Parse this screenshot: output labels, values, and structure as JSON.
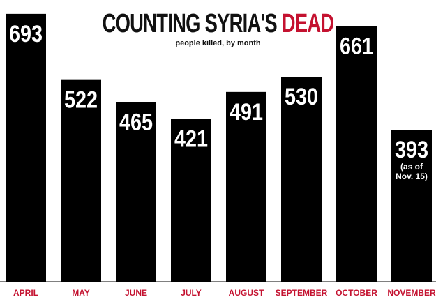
{
  "chart_data": {
    "type": "bar",
    "title_main": "COUNTING SYRIA'S",
    "title_accent": "DEAD",
    "subtitle": "people killed, by month",
    "categories": [
      "APRIL",
      "MAY",
      "JUNE",
      "JULY",
      "AUGUST",
      "SEPTEMBER",
      "OCTOBER",
      "NOVEMBER"
    ],
    "values": [
      693,
      522,
      465,
      421,
      491,
      530,
      661,
      393
    ],
    "value_labels": [
      "693",
      "522",
      "465",
      "421",
      "491",
      "530",
      "661",
      "393"
    ],
    "notes": [
      "",
      "",
      "",
      "",
      "",
      "",
      "",
      "(as of Nov. 15)"
    ],
    "note_lines": [
      [],
      [],
      [],
      [],
      [],
      [],
      [],
      [
        "(as of",
        "Nov. 15)"
      ]
    ],
    "ylim": [
      0,
      700
    ],
    "grid": false,
    "legend": "none",
    "colors": {
      "bar": "#000000",
      "label": "#c41230",
      "value_text": "#ffffff",
      "title_accent": "#c41230"
    }
  }
}
